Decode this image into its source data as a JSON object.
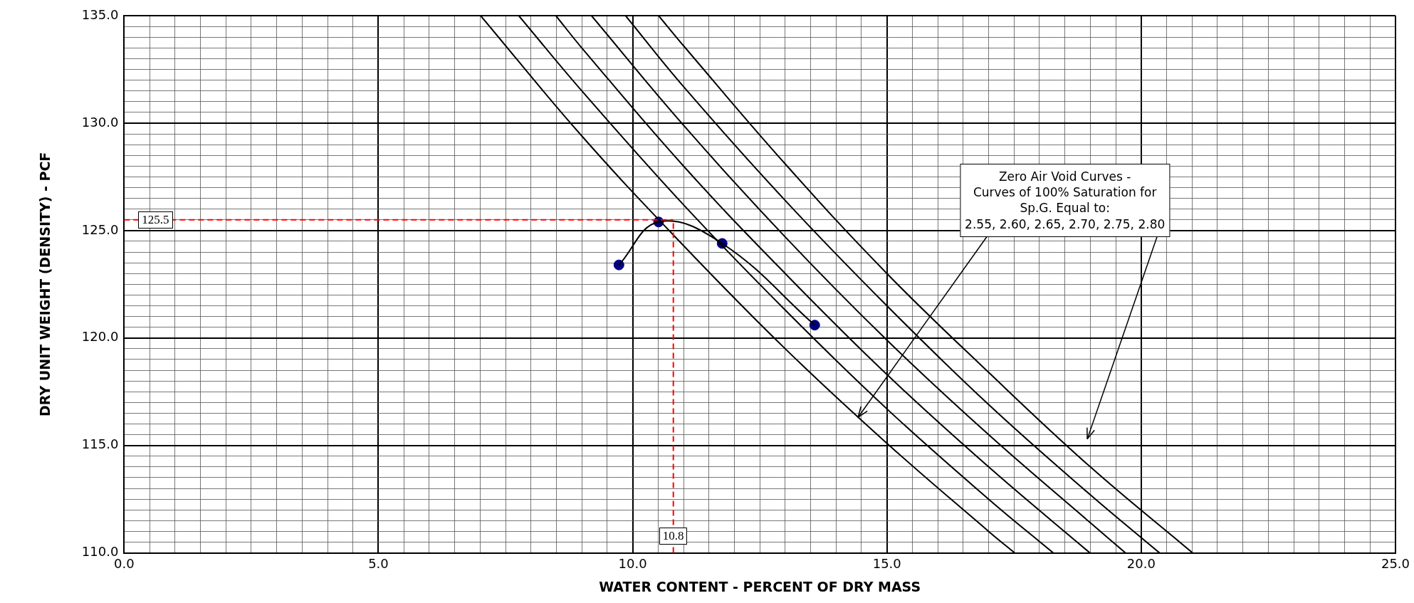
{
  "chart_data": {
    "type": "line",
    "xlabel": "WATER CONTENT - PERCENT OF DRY MASS",
    "ylabel": "DRY UNIT WEIGHT (DENSITY) - PCF",
    "xlim": [
      0,
      25
    ],
    "ylim": [
      110,
      135
    ],
    "xticks": [
      {
        "value": 0,
        "label": "0.0"
      },
      {
        "value": 0.5,
        "label": null
      },
      {
        "value": 1,
        "label": null
      },
      {
        "value": 1.5,
        "label": null
      },
      {
        "value": 2,
        "label": null
      },
      {
        "value": 2.5,
        "label": null
      },
      {
        "value": 3,
        "label": null
      },
      {
        "value": 3.5,
        "label": null
      },
      {
        "value": 4,
        "label": null
      },
      {
        "value": 4.5,
        "label": null
      },
      {
        "value": 5,
        "label": "5.0"
      },
      {
        "value": 5.5,
        "label": null
      },
      {
        "value": 6,
        "label": null
      },
      {
        "value": 6.5,
        "label": null
      },
      {
        "value": 7,
        "label": null
      },
      {
        "value": 7.5,
        "label": null
      },
      {
        "value": 8,
        "label": null
      },
      {
        "value": 8.5,
        "label": null
      },
      {
        "value": 9,
        "label": null
      },
      {
        "value": 9.5,
        "label": null
      },
      {
        "value": 10,
        "label": "10.0"
      },
      {
        "value": 10.5,
        "label": null
      },
      {
        "value": 11,
        "label": null
      },
      {
        "value": 11.5,
        "label": null
      },
      {
        "value": 12,
        "label": null
      },
      {
        "value": 12.5,
        "label": null
      },
      {
        "value": 13,
        "label": null
      },
      {
        "value": 13.5,
        "label": null
      },
      {
        "value": 14,
        "label": null
      },
      {
        "value": 14.5,
        "label": null
      },
      {
        "value": 15,
        "label": "15.0"
      },
      {
        "value": 15.5,
        "label": null
      },
      {
        "value": 16,
        "label": null
      },
      {
        "value": 16.5,
        "label": null
      },
      {
        "value": 17,
        "label": null
      },
      {
        "value": 17.5,
        "label": null
      },
      {
        "value": 18,
        "label": null
      },
      {
        "value": 18.5,
        "label": null
      },
      {
        "value": 19,
        "label": null
      },
      {
        "value": 19.5,
        "label": null
      },
      {
        "value": 20,
        "label": "20.0"
      },
      {
        "value": 20.5,
        "label": null
      },
      {
        "value": 21,
        "label": null
      },
      {
        "value": 21.5,
        "label": null
      },
      {
        "value": 22,
        "label": null
      },
      {
        "value": 22.5,
        "label": null
      },
      {
        "value": 23,
        "label": null
      },
      {
        "value": 23.5,
        "label": null
      },
      {
        "value": 24,
        "label": null
      },
      {
        "value": 24.5,
        "label": null
      },
      {
        "value": 25,
        "label": "25.0"
      }
    ],
    "yticks": [
      {
        "value": 110,
        "label": "110.0"
      },
      {
        "value": 110.5,
        "label": null
      },
      {
        "value": 111,
        "label": null
      },
      {
        "value": 111.5,
        "label": null
      },
      {
        "value": 112,
        "label": null
      },
      {
        "value": 112.5,
        "label": null
      },
      {
        "value": 113,
        "label": null
      },
      {
        "value": 113.5,
        "label": null
      },
      {
        "value": 114,
        "label": null
      },
      {
        "value": 114.5,
        "label": null
      },
      {
        "value": 115,
        "label": "115.0"
      },
      {
        "value": 115.5,
        "label": null
      },
      {
        "value": 116,
        "label": null
      },
      {
        "value": 116.5,
        "label": null
      },
      {
        "value": 117,
        "label": null
      },
      {
        "value": 117.5,
        "label": null
      },
      {
        "value": 118,
        "label": null
      },
      {
        "value": 118.5,
        "label": null
      },
      {
        "value": 119,
        "label": null
      },
      {
        "value": 119.5,
        "label": null
      },
      {
        "value": 120,
        "label": "120.0"
      },
      {
        "value": 120.5,
        "label": null
      },
      {
        "value": 121,
        "label": null
      },
      {
        "value": 121.5,
        "label": null
      },
      {
        "value": 122,
        "label": null
      },
      {
        "value": 122.5,
        "label": null
      },
      {
        "value": 123,
        "label": null
      },
      {
        "value": 123.5,
        "label": null
      },
      {
        "value": 124,
        "label": null
      },
      {
        "value": 124.5,
        "label": null
      },
      {
        "value": 125,
        "label": "125.0"
      },
      {
        "value": 125.5,
        "label": null
      },
      {
        "value": 126,
        "label": null
      },
      {
        "value": 126.5,
        "label": null
      },
      {
        "value": 127,
        "label": null
      },
      {
        "value": 127.5,
        "label": null
      },
      {
        "value": 128,
        "label": null
      },
      {
        "value": 128.5,
        "label": null
      },
      {
        "value": 129,
        "label": null
      },
      {
        "value": 129.5,
        "label": null
      },
      {
        "value": 130,
        "label": "130.0"
      },
      {
        "value": 130.5,
        "label": null
      },
      {
        "value": 131,
        "label": null
      },
      {
        "value": 131.5,
        "label": null
      },
      {
        "value": 132,
        "label": null
      },
      {
        "value": 132.5,
        "label": null
      },
      {
        "value": 133,
        "label": null
      },
      {
        "value": 133.5,
        "label": null
      },
      {
        "value": 134,
        "label": null
      },
      {
        "value": 134.5,
        "label": null
      },
      {
        "value": 135,
        "label": "135.0"
      }
    ],
    "grid": true,
    "legend": false,
    "series": [
      {
        "color": "#000000",
        "marker": "none",
        "x": [
          7.01,
          9,
          11,
          13,
          15,
          17,
          17.51
        ],
        "values": [
          135,
          129.4,
          124.3,
          119.5,
          115.1,
          111.0,
          110
        ]
      },
      {
        "color": "#000000",
        "marker": "none",
        "x": [
          7.76,
          9,
          11,
          13,
          15,
          17,
          18.27
        ],
        "values": [
          135,
          131.5,
          126.2,
          121.3,
          116.7,
          112.5,
          110
        ]
      },
      {
        "color": "#000000",
        "marker": "none",
        "x": [
          8.49,
          9,
          11,
          13,
          15,
          17,
          18.99
        ],
        "values": [
          135,
          133.5,
          128.0,
          123.0,
          118.3,
          114.0,
          110
        ]
      },
      {
        "color": "#000000",
        "marker": "none",
        "x": [
          9.19,
          11,
          13,
          15,
          17,
          19,
          19.69
        ],
        "values": [
          135,
          129.9,
          124.7,
          119.9,
          115.5,
          111.4,
          110
        ]
      },
      {
        "color": "#000000",
        "marker": "none",
        "x": [
          9.86,
          11,
          13,
          15,
          17,
          19,
          20.36
        ],
        "values": [
          135,
          131.7,
          126.4,
          121.5,
          116.9,
          112.7,
          110
        ]
      },
      {
        "color": "#000000",
        "marker": "none",
        "x": [
          10.51,
          11,
          13,
          15,
          17,
          19,
          21.01
        ],
        "values": [
          135,
          133.6,
          128.1,
          123.0,
          118.4,
          114.0,
          110
        ]
      },
      {
        "color": "#000000",
        "marker": "none",
        "x": [
          9.73,
          10.51,
          11.76,
          13.58
        ],
        "values": [
          123.4,
          125.4,
          124.4,
          120.6
        ]
      },
      {
        "type": "scatter",
        "color": "#000080",
        "marker": "circle",
        "x": [
          9.73,
          10.51,
          11.76,
          13.58
        ],
        "values": [
          123.4,
          125.4,
          124.4,
          120.6
        ]
      }
    ],
    "ref_lines": [
      {
        "axis": "y",
        "value": 125.5,
        "label": "125.5",
        "color": "#ff0000",
        "line_style": "dashed"
      },
      {
        "axis": "x",
        "value": 10.8,
        "label": "10.8",
        "color": "#ff0000",
        "line_style": "dashed"
      }
    ],
    "annotations": [
      {
        "text": "Zero Air Void Curves -\nCurves of 100% Saturation for\nSp.G. Equal to:\n2.55, 2.60, 2.65, 2.70, 2.75, 2.80",
        "x": 14.43,
        "y": 116.3
      }
    ]
  }
}
